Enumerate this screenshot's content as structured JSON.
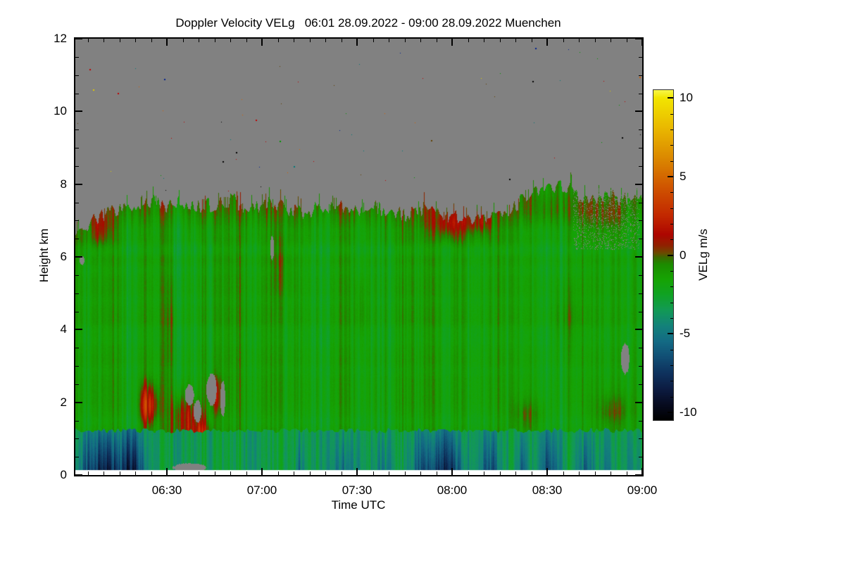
{
  "chart_data": {
    "type": "heatmap",
    "title": "Doppler Velocity VELg   06:01 28.09.2022 - 09:00 28.09.2022 Muenchen",
    "instrument_location": "Muenchen",
    "time_start": "06:01 28.09.2022",
    "time_end": "09:00 28.09.2022",
    "xlabel": "Time UTC",
    "ylabel": "Height km",
    "x_axis": {
      "start": "06:01",
      "end": "09:00",
      "span_min": 179,
      "major_ticks": [
        "06:30",
        "07:00",
        "07:30",
        "08:00",
        "08:30",
        "09:00"
      ],
      "major_tick_minutes": [
        29,
        59,
        89,
        119,
        149,
        179
      ],
      "minor_step_min": 5
    },
    "y_axis": {
      "min": 0,
      "max": 12,
      "major_ticks": [
        0,
        2,
        4,
        6,
        8,
        10,
        12
      ],
      "minor_step": 0.5
    },
    "colorbar": {
      "label": "VELg m/s",
      "min": -10.5,
      "max": 10.5,
      "major_ticks": [
        -10,
        -5,
        0,
        5,
        10
      ],
      "minor_step": 1,
      "stops": [
        [
          -10.5,
          "#000000"
        ],
        [
          -9.5,
          "#070b20"
        ],
        [
          -8.5,
          "#0c1c42"
        ],
        [
          -7.5,
          "#0e325e"
        ],
        [
          -6.5,
          "#114e74"
        ],
        [
          -5.5,
          "#136a84"
        ],
        [
          -4.5,
          "#13827a"
        ],
        [
          -3.5,
          "#129a55"
        ],
        [
          -2.5,
          "#10a223"
        ],
        [
          -1.5,
          "#16a303"
        ],
        [
          -0.6,
          "#1c8c00"
        ],
        [
          -0.15,
          "#3a6a00"
        ],
        [
          0.15,
          "#6e4800"
        ],
        [
          0.6,
          "#8f2200"
        ],
        [
          1.3,
          "#ad0600"
        ],
        [
          2.5,
          "#c22800"
        ],
        [
          4.0,
          "#cd4c00"
        ],
        [
          6.0,
          "#da8400"
        ],
        [
          8.0,
          "#e9b600"
        ],
        [
          10.0,
          "#f2e600"
        ],
        [
          10.5,
          "#f8f84a"
        ]
      ]
    },
    "no_data_color": "#818181",
    "field": {
      "cloud_top_km": [
        6.6,
        6.95,
        7.2,
        7.35,
        7.45,
        7.5,
        7.4,
        7.5,
        7.35,
        7.5,
        7.55,
        7.3,
        7.5,
        7.45,
        7.2,
        7.3,
        7.4,
        7.35,
        7.3,
        7.35,
        7.25,
        7.15,
        7.3,
        7.2,
        7.1,
        6.95,
        7.1,
        7.25,
        7.5,
        7.75,
        7.95,
        7.9,
        7.65,
        7.55,
        7.65,
        7.55
      ],
      "lowest_valid_height_km": 0.13,
      "cloud_base_velocity_ms": -1.6,
      "boundary_layer": {
        "top_km": 1.22,
        "base_velocity_ms": -3.3,
        "dark_streaks": [
          {
            "t": 4,
            "w": 5,
            "amp": 3.2
          },
          {
            "t": 9,
            "w": 4,
            "amp": 3.5
          },
          {
            "t": 14,
            "w": 5,
            "amp": 4.2
          },
          {
            "t": 19,
            "w": 3,
            "amp": 4.5
          },
          {
            "t": 71,
            "w": 1.5,
            "amp": 3.0
          },
          {
            "t": 85,
            "w": 4,
            "amp": 2.8
          },
          {
            "t": 97,
            "w": 3,
            "amp": 2.5
          },
          {
            "t": 112,
            "w": 6,
            "amp": 4.5
          },
          {
            "t": 119,
            "w": 4,
            "amp": 4.2
          },
          {
            "t": 131,
            "w": 3,
            "amp": 4.3
          },
          {
            "t": 141,
            "w": 2,
            "amp": 3.0
          },
          {
            "t": 150,
            "w": 3,
            "amp": 3.8
          },
          {
            "t": 161,
            "w": 3,
            "amp": 3.2
          },
          {
            "t": 168,
            "w": 2,
            "amp": 2.2
          },
          {
            "t": 176,
            "w": 2,
            "amp": 1.5
          }
        ]
      },
      "positive_patches": [
        {
          "t": 23,
          "h": 1.9,
          "st": 2.5,
          "sh": 0.55,
          "amp": 4.0
        },
        {
          "t": 34,
          "h": 1.5,
          "st": 4,
          "sh": 0.7,
          "amp": 3.6
        },
        {
          "t": 40,
          "h": 1.1,
          "st": 3,
          "sh": 0.55,
          "amp": 3.4
        },
        {
          "t": 44,
          "h": 2.2,
          "st": 2,
          "sh": 0.5,
          "amp": 2.6
        },
        {
          "t": 8,
          "h": 6.8,
          "st": 4,
          "sh": 0.45,
          "amp": 1.5
        },
        {
          "t": 118,
          "h": 6.9,
          "st": 7,
          "sh": 0.38,
          "amp": 2.0
        },
        {
          "t": 127,
          "h": 6.95,
          "st": 4,
          "sh": 0.3,
          "amp": 1.6
        },
        {
          "t": 152,
          "h": 7.15,
          "st": 10,
          "sh": 0.5,
          "amp": 1.1
        },
        {
          "t": 168,
          "h": 7.05,
          "st": 6,
          "sh": 0.5,
          "amp": 1.2
        },
        {
          "t": 143,
          "h": 1.6,
          "st": 5,
          "sh": 0.45,
          "amp": 1.5
        },
        {
          "t": 170,
          "h": 1.7,
          "st": 6,
          "sh": 0.5,
          "amp": 1.5
        },
        {
          "t": 65,
          "h": 5.8,
          "st": 3,
          "sh": 0.9,
          "amp": 1.0
        },
        {
          "t": 90,
          "h": 4.5,
          "st": 2,
          "sh": 1.0,
          "amp": 0.8
        },
        {
          "t": 155,
          "h": 4.3,
          "st": 4,
          "sh": 0.9,
          "amp": 1.0
        },
        {
          "t": 30,
          "h": 4.0,
          "st": 2,
          "sh": 1.2,
          "amp": 0.9
        }
      ],
      "no_data_holes": [
        {
          "t": 36,
          "h": 2.2,
          "rt": 1.4,
          "rh": 0.28
        },
        {
          "t": 38.5,
          "h": 1.75,
          "rt": 1.2,
          "rh": 0.3
        },
        {
          "t": 43,
          "h": 2.35,
          "rt": 1.6,
          "rh": 0.45
        },
        {
          "t": 46.5,
          "h": 2.1,
          "rt": 0.8,
          "rh": 0.5
        },
        {
          "t": 36,
          "h": 0.2,
          "rt": 5.5,
          "rh": 0.12
        },
        {
          "t": 173.5,
          "h": 3.2,
          "rt": 1.4,
          "rh": 0.42
        },
        {
          "t": 2,
          "h": 5.9,
          "rt": 0.8,
          "rh": 0.12
        },
        {
          "t": 62,
          "h": 6.25,
          "rt": 0.6,
          "rh": 0.35
        }
      ],
      "hole_speckle_regions": [
        {
          "t0": 157,
          "t1": 178,
          "h0": 6.2,
          "density": 0.13
        }
      ],
      "noise_speckles": {
        "count": 70,
        "colors": [
          "#000000",
          "#d86000",
          "#c00000",
          "#e0cc00",
          "#009800",
          "#007878",
          "#002090",
          "#604000"
        ]
      }
    },
    "coarse_grid": {
      "note": "estimated mean Doppler velocity (m/s); null = no data (gray, above cloud top ~7-8 km or signal gap)",
      "time_utc": [
        "06:01",
        "06:11",
        "06:21",
        "06:31",
        "06:41",
        "06:51",
        "07:01",
        "07:11",
        "07:21",
        "07:31",
        "07:41",
        "07:51",
        "08:01",
        "08:11",
        "08:21",
        "08:31",
        "08:41",
        "08:51"
      ],
      "height_km": [
        7.5,
        6.5,
        5.5,
        4.5,
        3.5,
        2.5,
        1.5,
        0.5
      ],
      "velocity_ms": [
        [
          null,
          null,
          null,
          null,
          null,
          null,
          null,
          null,
          null,
          null,
          null,
          null,
          null,
          null,
          null,
          0.3,
          0.2,
          0.1
        ],
        [
          -0.5,
          0.1,
          0.2,
          0,
          0.1,
          0.3,
          0,
          0.1,
          0,
          0.2,
          0.8,
          1.2,
          0.6,
          0.2,
          0,
          0.3,
          0.5,
          0.3
        ],
        [
          -1,
          -1.2,
          -0.8,
          -1,
          -1.3,
          -0.9,
          -1.1,
          -0.7,
          -1.2,
          -1,
          -0.8,
          -0.9,
          -1.1,
          -0.6,
          -1,
          -0.8,
          -0.5,
          -0.9
        ],
        [
          -1.3,
          -1.1,
          -1.4,
          -1,
          -1.2,
          -1.5,
          -1.2,
          -1,
          -1.4,
          -1.2,
          -1.1,
          -1.3,
          -1,
          -1.2,
          -1.4,
          -0.9,
          -1.2,
          -1.1
        ],
        [
          -1.5,
          -1.4,
          -1.2,
          -1.6,
          -1.3,
          -1.5,
          -1.4,
          -1.6,
          -1.2,
          -1.5,
          -1.3,
          -1.4,
          -1.6,
          -1.3,
          -1.5,
          -1.4,
          -1.2,
          null
        ],
        [
          -1.6,
          -1.5,
          -1.3,
          -1.7,
          -1.4,
          -1.6,
          -1.5,
          -1.7,
          -1.3,
          -1.6,
          -1.4,
          -1.5,
          -1.7,
          -1.4,
          -1.6,
          -1.5,
          -1.3,
          -1.6
        ],
        [
          -1.8,
          -1.7,
          2.5,
          1.8,
          2.2,
          -1.5,
          -1.8,
          -1.6,
          -1.9,
          -1.7,
          -1.8,
          -1.6,
          -1.9,
          -1.7,
          -0.5,
          -1.8,
          -1.6,
          -0.4
        ],
        [
          -6,
          -6.5,
          -3.5,
          -3,
          -3.2,
          -3,
          -3.5,
          -4.5,
          -3.3,
          -3.4,
          -5.5,
          -6.5,
          -4,
          -5.5,
          -4.5,
          -5,
          -4,
          -3.5
        ]
      ]
    }
  }
}
